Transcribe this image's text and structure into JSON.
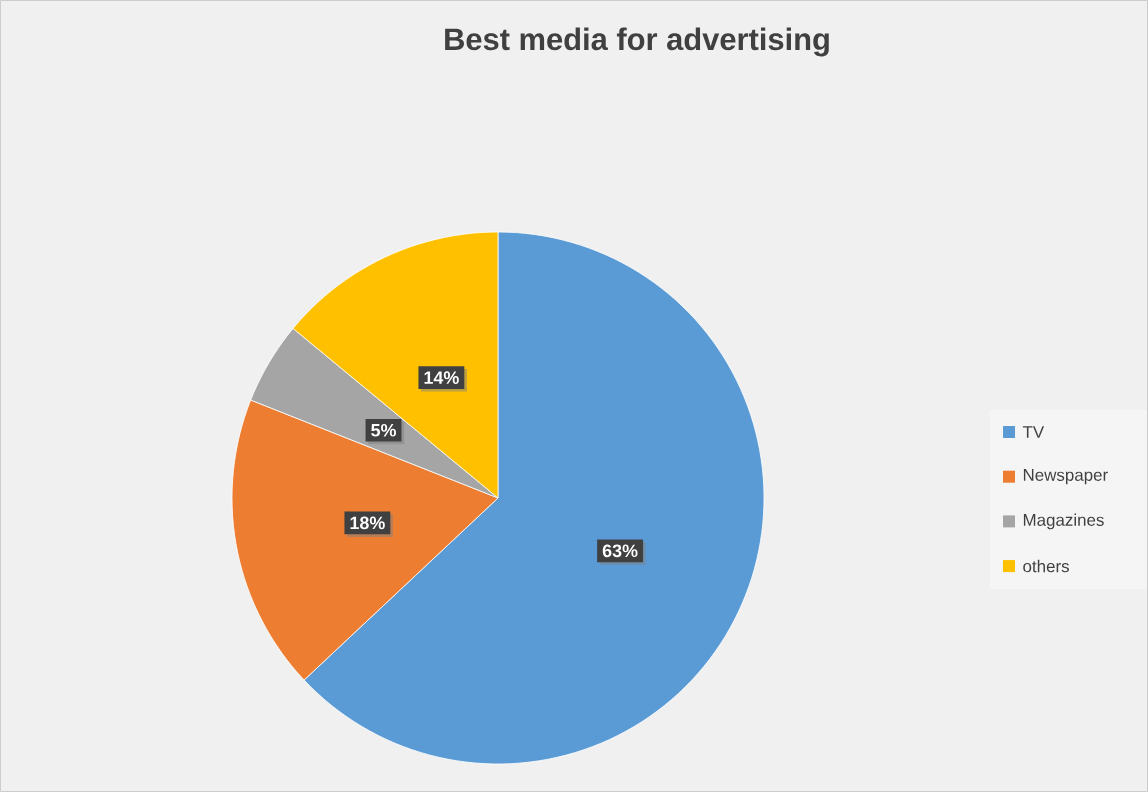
{
  "chart_data": {
    "type": "pie",
    "title": "Best media for advertising",
    "categories": [
      "TV",
      "Newspaper",
      "Magazines",
      "others"
    ],
    "values": [
      63,
      18,
      5,
      14
    ],
    "colors": [
      "#5b9bd5",
      "#ed7d31",
      "#a5a5a5",
      "#ffc000"
    ],
    "value_labels": [
      "63%",
      "18%",
      "5%",
      "14%"
    ],
    "legend": "right"
  }
}
